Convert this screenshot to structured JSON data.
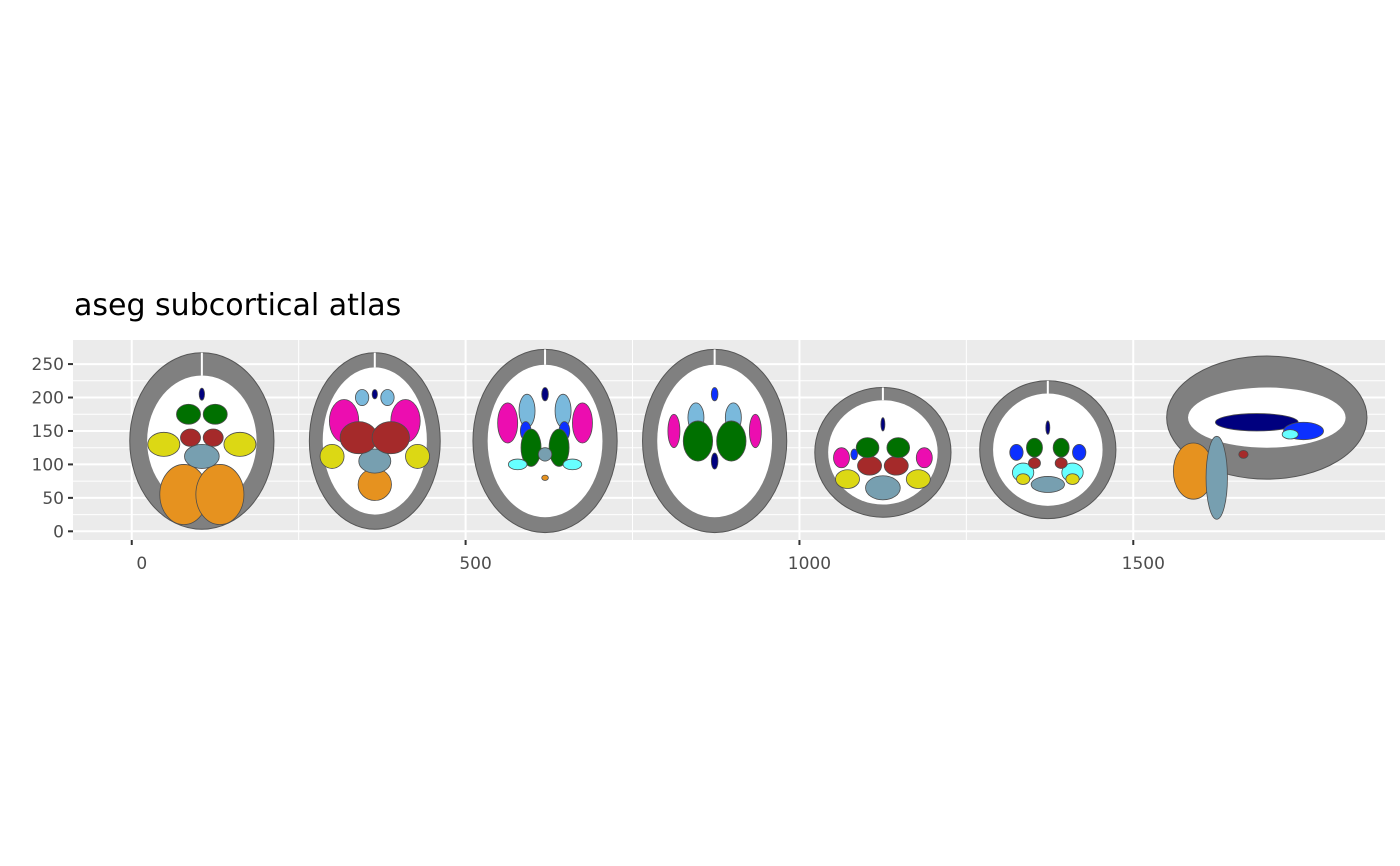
{
  "chart_data": {
    "type": "polygon-map",
    "title": "aseg subcortical atlas",
    "xlabel": "",
    "ylabel": "",
    "xlim": [
      -88,
      1877
    ],
    "ylim": [
      -13,
      286
    ],
    "x_ticks": [
      0,
      500,
      1000,
      1500
    ],
    "y_ticks": [
      0,
      50,
      100,
      150,
      200,
      250
    ],
    "grid": true,
    "panel_background": "#EBEBEB",
    "colors": {
      "cortex": "#808080",
      "white": "#FFFFFF",
      "cerebellum": "#E6921F",
      "brainstem": "#779FB0",
      "hippocampus": "#DCD814",
      "thalamus": "#A52A2A",
      "caudate": "#7AB9DC",
      "putamen": "#EC0DB0",
      "pallidum": "#0C30FF",
      "amygdala": "#67FFFF",
      "ventricle": "#00007F",
      "ventral_dc": "#007000",
      "vessel": "#A0A0A0"
    },
    "slices": [
      {
        "cx": 105,
        "cy": 135,
        "rx": 108,
        "ry": 132,
        "irx": 82,
        "iry": 98
      },
      {
        "cx": 364,
        "cy": 135,
        "rx": 98,
        "ry": 132,
        "irx": 78,
        "iry": 110
      },
      {
        "cx": 619,
        "cy": 135,
        "rx": 108,
        "ry": 137,
        "irx": 86,
        "iry": 114
      },
      {
        "cx": 873,
        "cy": 135,
        "rx": 108,
        "ry": 137,
        "irx": 86,
        "iry": 114
      },
      {
        "cx": 1125,
        "cy": 118,
        "rx": 102,
        "ry": 97,
        "irx": 82,
        "iry": 78
      },
      {
        "cx": 1372,
        "cy": 122,
        "rx": 102,
        "ry": 103,
        "irx": 82,
        "iry": 84
      },
      {
        "cx": 1700,
        "cy": 170,
        "rx": 150,
        "ry": 92,
        "irx": 118,
        "iry": 45
      }
    ],
    "regions": [
      {
        "s": "cerebellum",
        "x": 78,
        "y": 55,
        "rx": 36,
        "ry": 45
      },
      {
        "s": "cerebellum",
        "x": 132,
        "y": 55,
        "rx": 36,
        "ry": 45
      },
      {
        "s": "brainstem",
        "x": 105,
        "y": 112,
        "rx": 26,
        "ry": 18
      },
      {
        "s": "hippocampus",
        "x": 48,
        "y": 130,
        "rx": 24,
        "ry": 18
      },
      {
        "s": "hippocampus",
        "x": 162,
        "y": 130,
        "rx": 24,
        "ry": 18
      },
      {
        "s": "thalamus",
        "x": 88,
        "y": 140,
        "rx": 15,
        "ry": 13
      },
      {
        "s": "thalamus",
        "x": 122,
        "y": 140,
        "rx": 15,
        "ry": 13
      },
      {
        "s": "ventral_dc",
        "x": 85,
        "y": 175,
        "rx": 18,
        "ry": 15
      },
      {
        "s": "ventral_dc",
        "x": 125,
        "y": 175,
        "rx": 18,
        "ry": 15
      },
      {
        "s": "ventricle",
        "x": 105,
        "y": 205,
        "rx": 4,
        "ry": 9
      },
      {
        "s": "cerebellum",
        "x": 364,
        "y": 70,
        "rx": 25,
        "ry": 24
      },
      {
        "s": "brainstem",
        "x": 364,
        "y": 105,
        "rx": 24,
        "ry": 18
      },
      {
        "s": "hippocampus",
        "x": 300,
        "y": 112,
        "rx": 18,
        "ry": 18
      },
      {
        "s": "hippocampus",
        "x": 428,
        "y": 112,
        "rx": 18,
        "ry": 18
      },
      {
        "s": "putamen",
        "x": 318,
        "y": 165,
        "rx": 22,
        "ry": 32
      },
      {
        "s": "putamen",
        "x": 410,
        "y": 165,
        "rx": 22,
        "ry": 32
      },
      {
        "s": "thalamus",
        "x": 340,
        "y": 140,
        "rx": 28,
        "ry": 24
      },
      {
        "s": "thalamus",
        "x": 388,
        "y": 140,
        "rx": 28,
        "ry": 24
      },
      {
        "s": "caudate",
        "x": 345,
        "y": 200,
        "rx": 10,
        "ry": 12
      },
      {
        "s": "caudate",
        "x": 383,
        "y": 200,
        "rx": 10,
        "ry": 12
      },
      {
        "s": "ventricle",
        "x": 364,
        "y": 205,
        "rx": 4,
        "ry": 7
      },
      {
        "s": "putamen",
        "x": 563,
        "y": 162,
        "rx": 15,
        "ry": 30
      },
      {
        "s": "putamen",
        "x": 675,
        "y": 162,
        "rx": 15,
        "ry": 30
      },
      {
        "s": "caudate",
        "x": 592,
        "y": 180,
        "rx": 12,
        "ry": 25
      },
      {
        "s": "caudate",
        "x": 646,
        "y": 180,
        "rx": 12,
        "ry": 25
      },
      {
        "s": "pallidum",
        "x": 590,
        "y": 150,
        "rx": 8,
        "ry": 14
      },
      {
        "s": "pallidum",
        "x": 648,
        "y": 150,
        "rx": 8,
        "ry": 14
      },
      {
        "s": "ventral_dc",
        "x": 598,
        "y": 125,
        "rx": 15,
        "ry": 28
      },
      {
        "s": "ventral_dc",
        "x": 640,
        "y": 125,
        "rx": 15,
        "ry": 28
      },
      {
        "s": "amygdala",
        "x": 578,
        "y": 100,
        "rx": 14,
        "ry": 8
      },
      {
        "s": "amygdala",
        "x": 660,
        "y": 100,
        "rx": 14,
        "ry": 8
      },
      {
        "s": "brainstem",
        "x": 619,
        "y": 115,
        "rx": 10,
        "ry": 10
      },
      {
        "s": "ventricle",
        "x": 619,
        "y": 205,
        "rx": 5,
        "ry": 10
      },
      {
        "s": "cerebellum",
        "x": 619,
        "y": 80,
        "rx": 5,
        "ry": 4
      },
      {
        "s": "putamen",
        "x": 812,
        "y": 150,
        "rx": 9,
        "ry": 25
      },
      {
        "s": "putamen",
        "x": 934,
        "y": 150,
        "rx": 9,
        "ry": 25
      },
      {
        "s": "caudate",
        "x": 845,
        "y": 170,
        "rx": 12,
        "ry": 22
      },
      {
        "s": "caudate",
        "x": 901,
        "y": 170,
        "rx": 12,
        "ry": 22
      },
      {
        "s": "ventral_dc",
        "x": 848,
        "y": 135,
        "rx": 22,
        "ry": 30
      },
      {
        "s": "ventral_dc",
        "x": 898,
        "y": 135,
        "rx": 22,
        "ry": 30
      },
      {
        "s": "ventricle",
        "x": 873,
        "y": 105,
        "rx": 5,
        "ry": 12
      },
      {
        "s": "pallidum",
        "x": 873,
        "y": 205,
        "rx": 5,
        "ry": 10
      },
      {
        "s": "brainstem",
        "x": 1125,
        "y": 65,
        "rx": 26,
        "ry": 18
      },
      {
        "s": "hippocampus",
        "x": 1072,
        "y": 78,
        "rx": 18,
        "ry": 14
      },
      {
        "s": "hippocampus",
        "x": 1178,
        "y": 78,
        "rx": 18,
        "ry": 14
      },
      {
        "s": "putamen",
        "x": 1063,
        "y": 110,
        "rx": 12,
        "ry": 15
      },
      {
        "s": "putamen",
        "x": 1187,
        "y": 110,
        "rx": 12,
        "ry": 15
      },
      {
        "s": "thalamus",
        "x": 1105,
        "y": 98,
        "rx": 18,
        "ry": 14
      },
      {
        "s": "thalamus",
        "x": 1145,
        "y": 98,
        "rx": 18,
        "ry": 14
      },
      {
        "s": "ventral_dc",
        "x": 1102,
        "y": 125,
        "rx": 17,
        "ry": 15
      },
      {
        "s": "ventral_dc",
        "x": 1148,
        "y": 125,
        "rx": 17,
        "ry": 15
      },
      {
        "s": "pallidum",
        "x": 1082,
        "y": 115,
        "rx": 5,
        "ry": 8
      },
      {
        "s": "ventricle",
        "x": 1125,
        "y": 160,
        "rx": 3,
        "ry": 10
      },
      {
        "s": "brainstem",
        "x": 1372,
        "y": 70,
        "rx": 25,
        "ry": 12
      },
      {
        "s": "amygdala",
        "x": 1335,
        "y": 88,
        "rx": 16,
        "ry": 14
      },
      {
        "s": "amygdala",
        "x": 1409,
        "y": 88,
        "rx": 16,
        "ry": 14
      },
      {
        "s": "hippocampus",
        "x": 1335,
        "y": 78,
        "rx": 10,
        "ry": 8
      },
      {
        "s": "hippocampus",
        "x": 1409,
        "y": 78,
        "rx": 10,
        "ry": 8
      },
      {
        "s": "pallidum",
        "x": 1325,
        "y": 118,
        "rx": 10,
        "ry": 12
      },
      {
        "s": "pallidum",
        "x": 1419,
        "y": 118,
        "rx": 10,
        "ry": 12
      },
      {
        "s": "ventral_dc",
        "x": 1352,
        "y": 125,
        "rx": 12,
        "ry": 14
      },
      {
        "s": "ventral_dc",
        "x": 1392,
        "y": 125,
        "rx": 12,
        "ry": 14
      },
      {
        "s": "thalamus",
        "x": 1352,
        "y": 102,
        "rx": 9,
        "ry": 8
      },
      {
        "s": "thalamus",
        "x": 1392,
        "y": 102,
        "rx": 9,
        "ry": 8
      },
      {
        "s": "ventricle",
        "x": 1372,
        "y": 155,
        "rx": 3,
        "ry": 10
      },
      {
        "s": "ventricle",
        "x": 1685,
        "y": 163,
        "rx": 62,
        "ry": 13
      },
      {
        "s": "pallidum",
        "x": 1755,
        "y": 150,
        "rx": 30,
        "ry": 13
      },
      {
        "s": "amygdala",
        "x": 1735,
        "y": 145,
        "rx": 12,
        "ry": 7
      },
      {
        "s": "cerebellum",
        "x": 1590,
        "y": 90,
        "rx": 30,
        "ry": 42
      },
      {
        "s": "brainstem",
        "x": 1625,
        "y": 80,
        "rx": 16,
        "ry": 62
      },
      {
        "s": "thalamus",
        "x": 1665,
        "y": 115,
        "rx": 7,
        "ry": 6
      }
    ]
  }
}
